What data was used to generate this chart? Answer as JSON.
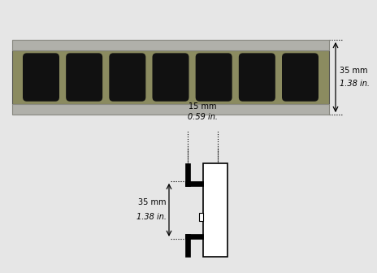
{
  "bg_color": "#e6e6e6",
  "top": {
    "rail_body_color": "#8b8b60",
    "rail_strip_color": "#b0b0aa",
    "slot_color": "#111111",
    "slot_count": 7,
    "dim_text1": "35 mm",
    "dim_text2": "1.38 in."
  },
  "bottom": {
    "dim15_text1": "15 mm",
    "dim15_text2": "0.59 in.",
    "dim35_text1": "35 mm",
    "dim35_text2": "1.38 in."
  },
  "font_size": 7
}
